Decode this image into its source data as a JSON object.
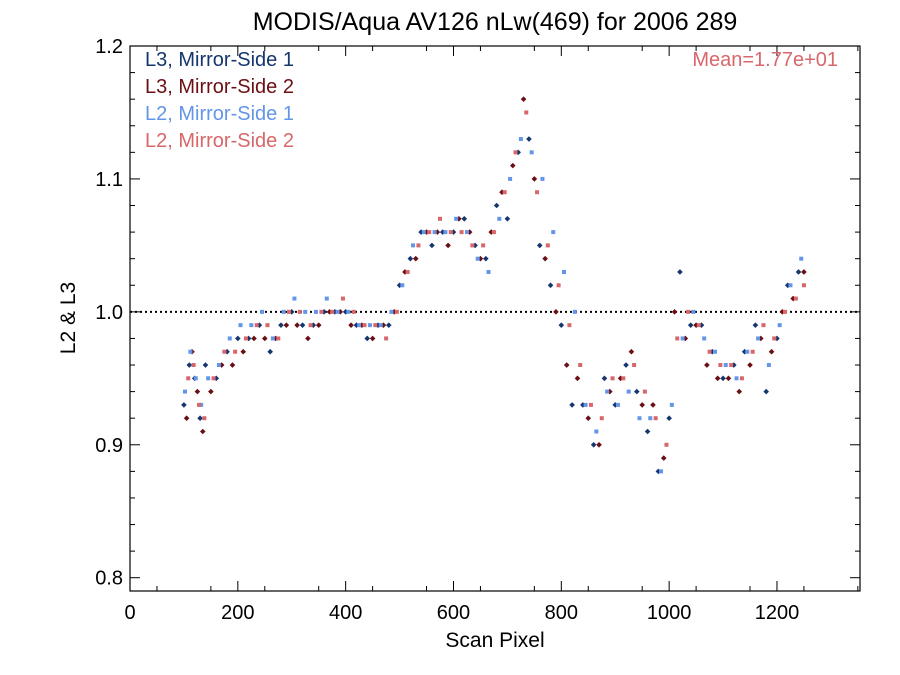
{
  "chart_data": {
    "type": "scatter",
    "title": "MODIS/Aqua AV126 nLw(469) for 2006 289",
    "xlabel": "Scan Pixel",
    "ylabel": "L2 & L3",
    "xlim": [
      0,
      1354
    ],
    "ylim": [
      0.79,
      1.2
    ],
    "x_ticks": [
      0,
      200,
      400,
      600,
      800,
      1000,
      1200
    ],
    "x_tick_labels": [
      "0",
      "200",
      "400",
      "600",
      "800",
      "1000",
      "1200"
    ],
    "y_ticks": [
      0.8,
      0.9,
      1.0,
      1.1,
      1.2
    ],
    "y_tick_labels": [
      "0.8",
      "0.9",
      "1.0",
      "1.1",
      "1.2"
    ],
    "reference_line": {
      "y": 1.0,
      "style": "dotted"
    },
    "annotation": {
      "text": "Mean=1.77e+01",
      "color": "#d8676b",
      "placement": "top-right"
    },
    "legend": {
      "placement": "top-left"
    },
    "series": [
      {
        "name": "L3, Mirror-Side 1",
        "color": "#15366e",
        "marker": "diamond",
        "x": [
          100,
          110,
          120,
          130,
          140,
          160,
          180,
          200,
          220,
          240,
          260,
          280,
          300,
          320,
          340,
          360,
          380,
          400,
          420,
          440,
          460,
          480,
          500,
          520,
          540,
          560,
          580,
          600,
          620,
          640,
          660,
          680,
          700,
          720,
          740,
          760,
          780,
          800,
          820,
          840,
          860,
          880,
          900,
          920,
          940,
          960,
          980,
          1000,
          1020,
          1040,
          1060,
          1080,
          1100,
          1120,
          1140,
          1160,
          1180,
          1200,
          1220,
          1240
        ],
        "y": [
          0.93,
          0.96,
          0.95,
          0.92,
          0.96,
          0.95,
          0.97,
          0.98,
          0.98,
          0.99,
          0.97,
          0.99,
          1.0,
          0.99,
          0.99,
          1.0,
          1.0,
          1.0,
          0.99,
          0.98,
          0.99,
          0.99,
          1.02,
          1.04,
          1.06,
          1.05,
          1.06,
          1.06,
          1.07,
          1.05,
          1.04,
          1.08,
          1.07,
          1.12,
          1.13,
          1.05,
          1.02,
          0.99,
          0.93,
          0.93,
          0.9,
          0.95,
          0.93,
          0.96,
          0.94,
          0.91,
          0.88,
          0.92,
          1.03,
          0.99,
          0.99,
          0.97,
          0.95,
          0.96,
          0.97,
          0.99,
          0.94,
          0.98,
          1.02,
          1.03
        ]
      },
      {
        "name": "L3, Mirror-Side 2",
        "color": "#6b0f14",
        "marker": "diamond",
        "x": [
          105,
          115,
          125,
          135,
          150,
          170,
          190,
          210,
          230,
          250,
          270,
          290,
          310,
          330,
          350,
          370,
          390,
          410,
          430,
          450,
          470,
          490,
          510,
          530,
          550,
          570,
          590,
          610,
          630,
          650,
          670,
          690,
          710,
          730,
          750,
          770,
          790,
          810,
          830,
          850,
          870,
          890,
          910,
          930,
          950,
          970,
          990,
          1010,
          1030,
          1050,
          1070,
          1090,
          1110,
          1130,
          1150,
          1170,
          1190,
          1210,
          1230,
          1250
        ],
        "y": [
          0.92,
          0.97,
          0.94,
          0.91,
          0.94,
          0.96,
          0.96,
          0.97,
          0.98,
          0.98,
          0.98,
          0.99,
          0.99,
          0.98,
          0.99,
          1.0,
          1.0,
          0.99,
          0.99,
          0.98,
          0.99,
          1.0,
          1.03,
          1.04,
          1.06,
          1.06,
          1.05,
          1.07,
          1.06,
          1.04,
          1.06,
          1.09,
          1.11,
          1.16,
          1.1,
          1.04,
          1.0,
          0.96,
          0.95,
          0.92,
          0.9,
          0.94,
          0.95,
          0.97,
          0.93,
          0.93,
          0.89,
          1.0,
          0.98,
          0.99,
          0.96,
          0.95,
          0.95,
          0.94,
          0.96,
          0.98,
          0.97,
          1.0,
          1.01,
          1.03
        ]
      },
      {
        "name": "L2, Mirror-Side 1",
        "color": "#6395e8",
        "marker": "square",
        "x": [
          102,
          112,
          122,
          132,
          145,
          165,
          185,
          205,
          225,
          245,
          265,
          285,
          305,
          325,
          345,
          365,
          385,
          405,
          425,
          445,
          465,
          485,
          505,
          525,
          545,
          565,
          585,
          605,
          625,
          645,
          665,
          685,
          705,
          725,
          745,
          765,
          785,
          805,
          825,
          845,
          865,
          885,
          905,
          925,
          945,
          965,
          985,
          1005,
          1025,
          1045,
          1065,
          1085,
          1105,
          1125,
          1145,
          1165,
          1185,
          1205,
          1225,
          1245
        ],
        "y": [
          0.94,
          0.97,
          0.95,
          0.93,
          0.95,
          0.96,
          0.98,
          0.99,
          0.99,
          1.0,
          0.98,
          1.0,
          1.01,
          1.0,
          1.0,
          1.01,
          1.0,
          1.0,
          0.99,
          0.99,
          0.99,
          1.0,
          1.02,
          1.05,
          1.06,
          1.06,
          1.06,
          1.07,
          1.06,
          1.04,
          1.03,
          1.07,
          1.1,
          1.13,
          1.12,
          1.1,
          1.06,
          1.03,
          1.0,
          0.93,
          0.91,
          0.94,
          0.93,
          0.94,
          0.92,
          0.92,
          0.88,
          0.93,
          0.98,
          1.0,
          0.98,
          0.97,
          0.96,
          0.95,
          0.97,
          0.98,
          0.96,
          0.99,
          1.02,
          1.04
        ]
      },
      {
        "name": "L2, Mirror-Side 2",
        "color": "#d8676b",
        "marker": "square",
        "x": [
          108,
          118,
          128,
          138,
          155,
          175,
          195,
          215,
          235,
          255,
          275,
          295,
          315,
          335,
          355,
          375,
          395,
          415,
          435,
          455,
          475,
          495,
          515,
          535,
          555,
          575,
          595,
          615,
          635,
          655,
          675,
          695,
          715,
          735,
          755,
          775,
          795,
          815,
          835,
          855,
          875,
          895,
          915,
          935,
          955,
          975,
          995,
          1015,
          1035,
          1055,
          1075,
          1095,
          1115,
          1135,
          1155,
          1175,
          1195,
          1215,
          1235,
          1250
        ],
        "y": [
          0.95,
          0.96,
          0.93,
          0.92,
          0.95,
          0.97,
          0.97,
          0.98,
          0.99,
          0.99,
          0.98,
          1.0,
          1.0,
          0.99,
          1.0,
          1.0,
          1.01,
          1.0,
          0.99,
          0.99,
          0.98,
          1.0,
          1.03,
          1.05,
          1.06,
          1.07,
          1.06,
          1.06,
          1.05,
          1.05,
          1.06,
          1.09,
          1.12,
          1.15,
          1.09,
          1.05,
          1.02,
          0.99,
          0.96,
          0.93,
          0.92,
          0.95,
          0.95,
          0.96,
          0.94,
          0.92,
          0.9,
          0.98,
          1.0,
          0.99,
          0.97,
          0.96,
          0.96,
          0.95,
          0.97,
          0.99,
          0.98,
          1.0,
          1.01,
          1.02
        ]
      }
    ]
  }
}
